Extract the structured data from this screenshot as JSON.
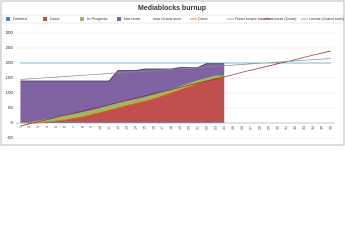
{
  "chart_data": {
    "type": "area",
    "title": "Mediablocks burnup",
    "categories": [
      "1",
      "2",
      "3",
      "4",
      "5",
      "6",
      "7",
      "8",
      "9",
      "10",
      "11",
      "12",
      "13",
      "14",
      "15",
      "16",
      "17",
      "18",
      "19",
      "20",
      "21",
      "22",
      "23",
      "24",
      "25",
      "26",
      "27",
      "28",
      "29",
      "30",
      "31",
      "32",
      "33",
      "34",
      "35",
      "36"
    ],
    "ylim": [
      -50,
      300
    ],
    "yticks": [
      -50,
      0,
      50,
      100,
      150,
      200,
      250,
      300
    ],
    "grid": true,
    "series": [
      {
        "name": "Deleted",
        "kind": "stack",
        "color": "#4f81bd",
        "values": [
          2,
          2,
          2,
          2,
          2,
          2,
          2,
          2,
          2,
          2,
          2,
          2,
          2,
          2,
          2,
          2,
          2,
          2,
          2,
          2,
          2,
          2,
          2,
          2,
          null,
          null,
          null,
          null,
          null,
          null,
          null,
          null,
          null,
          null,
          null,
          null
        ]
      },
      {
        "name": "Done",
        "kind": "stack",
        "color": "#c0504d",
        "values": [
          0,
          0,
          0,
          3,
          6,
          10,
          15,
          20,
          28,
          35,
          42,
          50,
          58,
          65,
          72,
          80,
          90,
          100,
          110,
          120,
          130,
          140,
          148,
          150,
          null,
          null,
          null,
          null,
          null,
          null,
          null,
          null,
          null,
          null,
          null,
          null
        ]
      },
      {
        "name": "In Progress",
        "kind": "stack",
        "color": "#9bbb59",
        "values": [
          0,
          0,
          5,
          8,
          10,
          12,
          12,
          14,
          12,
          12,
          14,
          14,
          12,
          12,
          12,
          12,
          10,
          10,
          10,
          10,
          10,
          8,
          8,
          6,
          null,
          null,
          null,
          null,
          null,
          null,
          null,
          null,
          null,
          null,
          null,
          null
        ]
      },
      {
        "name": "Not done",
        "kind": "stack",
        "color": "#8064a2",
        "values": [
          138,
          138,
          133,
          127,
          122,
          116,
          111,
          104,
          98,
          91,
          82,
          109,
          103,
          96,
          94,
          86,
          78,
          68,
          63,
          53,
          43,
          48,
          40,
          40,
          null,
          null,
          null,
          null,
          null,
          null,
          null,
          null,
          null,
          null,
          null,
          null
        ]
      },
      {
        "name": "Grand sum",
        "kind": "line",
        "color": "#3b2e5a",
        "values": [
          140,
          140,
          140,
          140,
          140,
          140,
          140,
          140,
          140,
          140,
          140,
          175,
          175,
          175,
          180,
          180,
          180,
          180,
          185,
          185,
          185,
          198,
          198,
          198,
          null,
          null,
          null,
          null,
          null,
          null,
          null,
          null,
          null,
          null,
          null,
          null
        ]
      },
      {
        "name": "Done",
        "kind": "line",
        "color": "#e46c0a",
        "values": [
          0,
          0,
          0,
          3,
          6,
          10,
          15,
          20,
          28,
          35,
          42,
          50,
          58,
          65,
          72,
          80,
          90,
          100,
          110,
          120,
          130,
          140,
          148,
          150,
          null,
          null,
          null,
          null,
          null,
          null,
          null,
          null,
          null,
          null,
          null,
          null
        ]
      },
      {
        "name": "Fixed scope baseline",
        "kind": "line",
        "color": "#4aacc6",
        "values": [
          200,
          200,
          200,
          200,
          200,
          200,
          200,
          200,
          200,
          200,
          200,
          200,
          200,
          200,
          200,
          200,
          200,
          200,
          200,
          200,
          200,
          200,
          200,
          200,
          200,
          200,
          200,
          200,
          200,
          200,
          200,
          200,
          200,
          200,
          200,
          200
        ]
      },
      {
        "name": "Linear (Done)",
        "kind": "line",
        "color": "#8b2c3c",
        "values": [
          -10,
          -3,
          4,
          11,
          19,
          26,
          33,
          40,
          47,
          54,
          61,
          69,
          76,
          83,
          90,
          97,
          104,
          111,
          119,
          126,
          133,
          140,
          147,
          154,
          161,
          169,
          176,
          183,
          190,
          197,
          204,
          211,
          219,
          226,
          233,
          240
        ]
      },
      {
        "name": "Linear (Grand sum)",
        "kind": "line",
        "color": "#8c8c8c",
        "values": [
          145,
          147,
          149,
          151,
          153,
          155,
          157,
          159,
          161,
          163,
          165,
          167,
          169,
          171,
          173,
          175,
          177,
          179,
          181,
          183,
          185,
          187,
          189,
          191,
          193,
          195,
          197,
          199,
          201,
          203,
          205,
          207,
          209,
          211,
          213,
          215
        ]
      }
    ]
  }
}
